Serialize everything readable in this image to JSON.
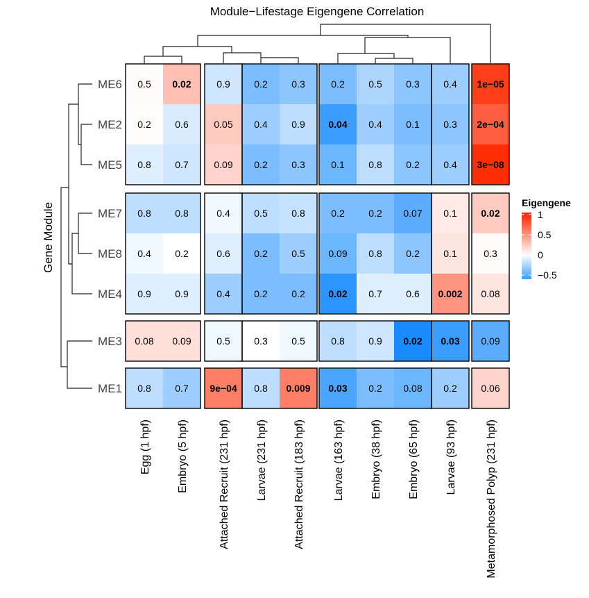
{
  "chart_data": {
    "type": "heatmap",
    "title": "Module−Lifestage Eigengene Correlation",
    "ylabel": "Gene Module",
    "legend": {
      "title": "Eigengene",
      "ticks": [
        "1",
        "0.5",
        "0",
        "−0.5"
      ],
      "tick_values": [
        1,
        0.5,
        0,
        -0.5
      ],
      "range": [
        -0.6,
        1.05
      ],
      "placement": "right"
    },
    "colors": {
      "high": "#ff2a00",
      "mid": "#ffffff",
      "low": "#0a84ff",
      "border": "#111111",
      "dendrogram": "#222222"
    },
    "columns": [
      "Egg (1 hpf)",
      "Embryo (5 hpf)",
      "Attached Recruit (231 hpf)",
      "Larvae (231 hpf)",
      "Attached Recruit (183 hpf)",
      "Larvae (163 hpf)",
      "Embryo (38 hpf)",
      "Embryo (65 hpf)",
      "Larvae (93 hpf)",
      "Metamorphosed Polyp (231 hpf)"
    ],
    "column_groups": [
      [
        0,
        1
      ],
      [
        2
      ],
      [
        3,
        4
      ],
      [
        5,
        6,
        7
      ],
      [
        8
      ],
      [
        9
      ]
    ],
    "rows": [
      "ME6",
      "ME2",
      "ME5",
      "ME7",
      "ME8",
      "ME4",
      "ME3",
      "ME1"
    ],
    "row_groups": [
      [
        0,
        1,
        2
      ],
      [
        3,
        4,
        5
      ],
      [
        6
      ],
      [
        7
      ]
    ],
    "values": [
      [
        0.02,
        0.3,
        -0.15,
        -0.4,
        -0.35,
        -0.4,
        -0.25,
        -0.35,
        -0.3,
        0.9
      ],
      [
        0.01,
        -0.12,
        0.25,
        -0.3,
        -0.2,
        -0.6,
        -0.3,
        -0.4,
        -0.35,
        0.75
      ],
      [
        -0.1,
        -0.15,
        0.2,
        -0.4,
        -0.35,
        -0.45,
        -0.2,
        -0.35,
        -0.3,
        0.98
      ],
      [
        -0.2,
        -0.2,
        -0.05,
        -0.2,
        -0.18,
        -0.4,
        -0.4,
        -0.5,
        0.1,
        0.25
      ],
      [
        -0.05,
        0.0,
        -0.1,
        -0.4,
        -0.3,
        -0.45,
        -0.2,
        -0.35,
        0.12,
        0.02
      ],
      [
        -0.1,
        -0.1,
        -0.3,
        -0.4,
        -0.4,
        -0.65,
        -0.1,
        -0.1,
        0.5,
        0.12
      ],
      [
        0.15,
        0.15,
        -0.05,
        0.0,
        -0.05,
        -0.2,
        -0.15,
        -0.7,
        -0.6,
        -0.5
      ],
      [
        -0.2,
        -0.3,
        0.6,
        -0.2,
        0.6,
        -0.55,
        -0.4,
        -0.45,
        -0.3,
        0.2
      ]
    ],
    "labels": [
      [
        "0.5",
        "0.02",
        "0.9",
        "0.2",
        "0.3",
        "0.2",
        "0.5",
        "0.3",
        "0.4",
        "1e−05"
      ],
      [
        "0.2",
        "0.6",
        "0.05",
        "0.4",
        "0.9",
        "0.04",
        "0.4",
        "0.1",
        "0.3",
        "2e−04"
      ],
      [
        "0.8",
        "0.7",
        "0.09",
        "0.2",
        "0.3",
        "0.1",
        "0.8",
        "0.2",
        "0.4",
        "3e−08"
      ],
      [
        "0.8",
        "0.8",
        "0.4",
        "0.5",
        "0.8",
        "0.2",
        "0.2",
        "0.07",
        "0.1",
        "0.02"
      ],
      [
        "0.4",
        "0.2",
        "0.6",
        "0.2",
        "0.5",
        "0.09",
        "0.8",
        "0.2",
        "0.1",
        "0.3"
      ],
      [
        "0.9",
        "0.9",
        "0.4",
        "0.2",
        "0.2",
        "0.02",
        "0.7",
        "0.6",
        "0.002",
        "0.08"
      ],
      [
        "0.08",
        "0.09",
        "0.5",
        "0.3",
        "0.5",
        "0.8",
        "0.9",
        "0.02",
        "0.03",
        "0.09"
      ],
      [
        "0.8",
        "0.7",
        "9e−04",
        "0.8",
        "0.009",
        "0.03",
        "0.2",
        "0.08",
        "0.2",
        "0.06"
      ]
    ],
    "bold": [
      [
        false,
        true,
        false,
        false,
        false,
        false,
        false,
        false,
        false,
        true
      ],
      [
        false,
        false,
        false,
        false,
        false,
        true,
        false,
        false,
        false,
        true
      ],
      [
        false,
        false,
        false,
        false,
        false,
        false,
        false,
        false,
        false,
        true
      ],
      [
        false,
        false,
        false,
        false,
        false,
        false,
        false,
        false,
        false,
        true
      ],
      [
        false,
        false,
        false,
        false,
        false,
        false,
        false,
        false,
        false,
        false
      ],
      [
        false,
        false,
        false,
        false,
        false,
        true,
        false,
        false,
        true,
        false
      ],
      [
        false,
        false,
        false,
        false,
        false,
        false,
        false,
        true,
        true,
        false
      ],
      [
        false,
        false,
        true,
        false,
        true,
        true,
        false,
        false,
        false,
        false
      ]
    ]
  }
}
